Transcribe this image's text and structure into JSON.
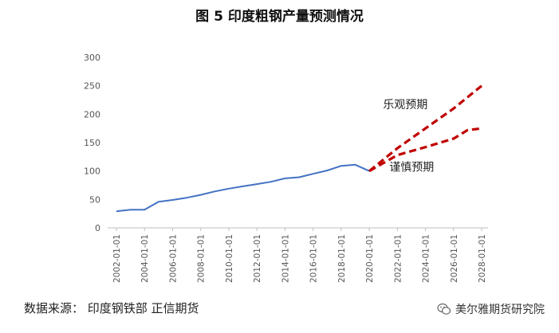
{
  "chart_data": {
    "type": "line",
    "title": "图 5 印度粗钢产量预测情况",
    "ylim": [
      0,
      300
    ],
    "yticks": [
      0,
      50,
      100,
      150,
      200,
      250,
      300
    ],
    "xticks": [
      "2002-01-01",
      "2004-01-01",
      "2006-01-01",
      "2008-01-01",
      "2010-01-01",
      "2012-01-01",
      "2014-01-01",
      "2016-01-01",
      "2018-01-01",
      "2020-01-01",
      "2022-01-01",
      "2024-01-01",
      "2026-01-01",
      "2028-01-01"
    ],
    "series": [
      {
        "name": "",
        "style": "solid",
        "color": "#4472C4",
        "points": [
          [
            "2002-01-01",
            29
          ],
          [
            "2003-01-01",
            32
          ],
          [
            "2004-01-01",
            32
          ],
          [
            "2005-01-01",
            46
          ],
          [
            "2006-01-01",
            49
          ],
          [
            "2007-01-01",
            53
          ],
          [
            "2008-01-01",
            58
          ],
          [
            "2009-01-01",
            64
          ],
          [
            "2010-01-01",
            69
          ],
          [
            "2011-01-01",
            73
          ],
          [
            "2012-01-01",
            77
          ],
          [
            "2013-01-01",
            81
          ],
          [
            "2014-01-01",
            87
          ],
          [
            "2015-01-01",
            89
          ],
          [
            "2016-01-01",
            95
          ],
          [
            "2017-01-01",
            101
          ],
          [
            "2018-01-01",
            109
          ],
          [
            "2019-01-01",
            111
          ],
          [
            "2020-01-01",
            100
          ]
        ]
      },
      {
        "name": "乐观预期",
        "style": "dashed",
        "color": "#C00000",
        "points": [
          [
            "2020-01-01",
            100
          ],
          [
            "2022-01-01",
            140
          ],
          [
            "2024-01-01",
            175
          ],
          [
            "2026-01-01",
            210
          ],
          [
            "2028-01-01",
            250
          ]
        ]
      },
      {
        "name": "谨慎预期",
        "style": "dashed",
        "color": "#C00000",
        "points": [
          [
            "2020-01-01",
            100
          ],
          [
            "2022-01-01",
            128
          ],
          [
            "2024-01-01",
            142
          ],
          [
            "2026-01-01",
            157
          ],
          [
            "2027-01-01",
            172
          ],
          [
            "2028-01-01",
            175
          ]
        ]
      }
    ]
  },
  "footer": {
    "source": "数据来源：  印度钢铁部  正信期货",
    "watermark": "美尔雅期货研究院"
  }
}
